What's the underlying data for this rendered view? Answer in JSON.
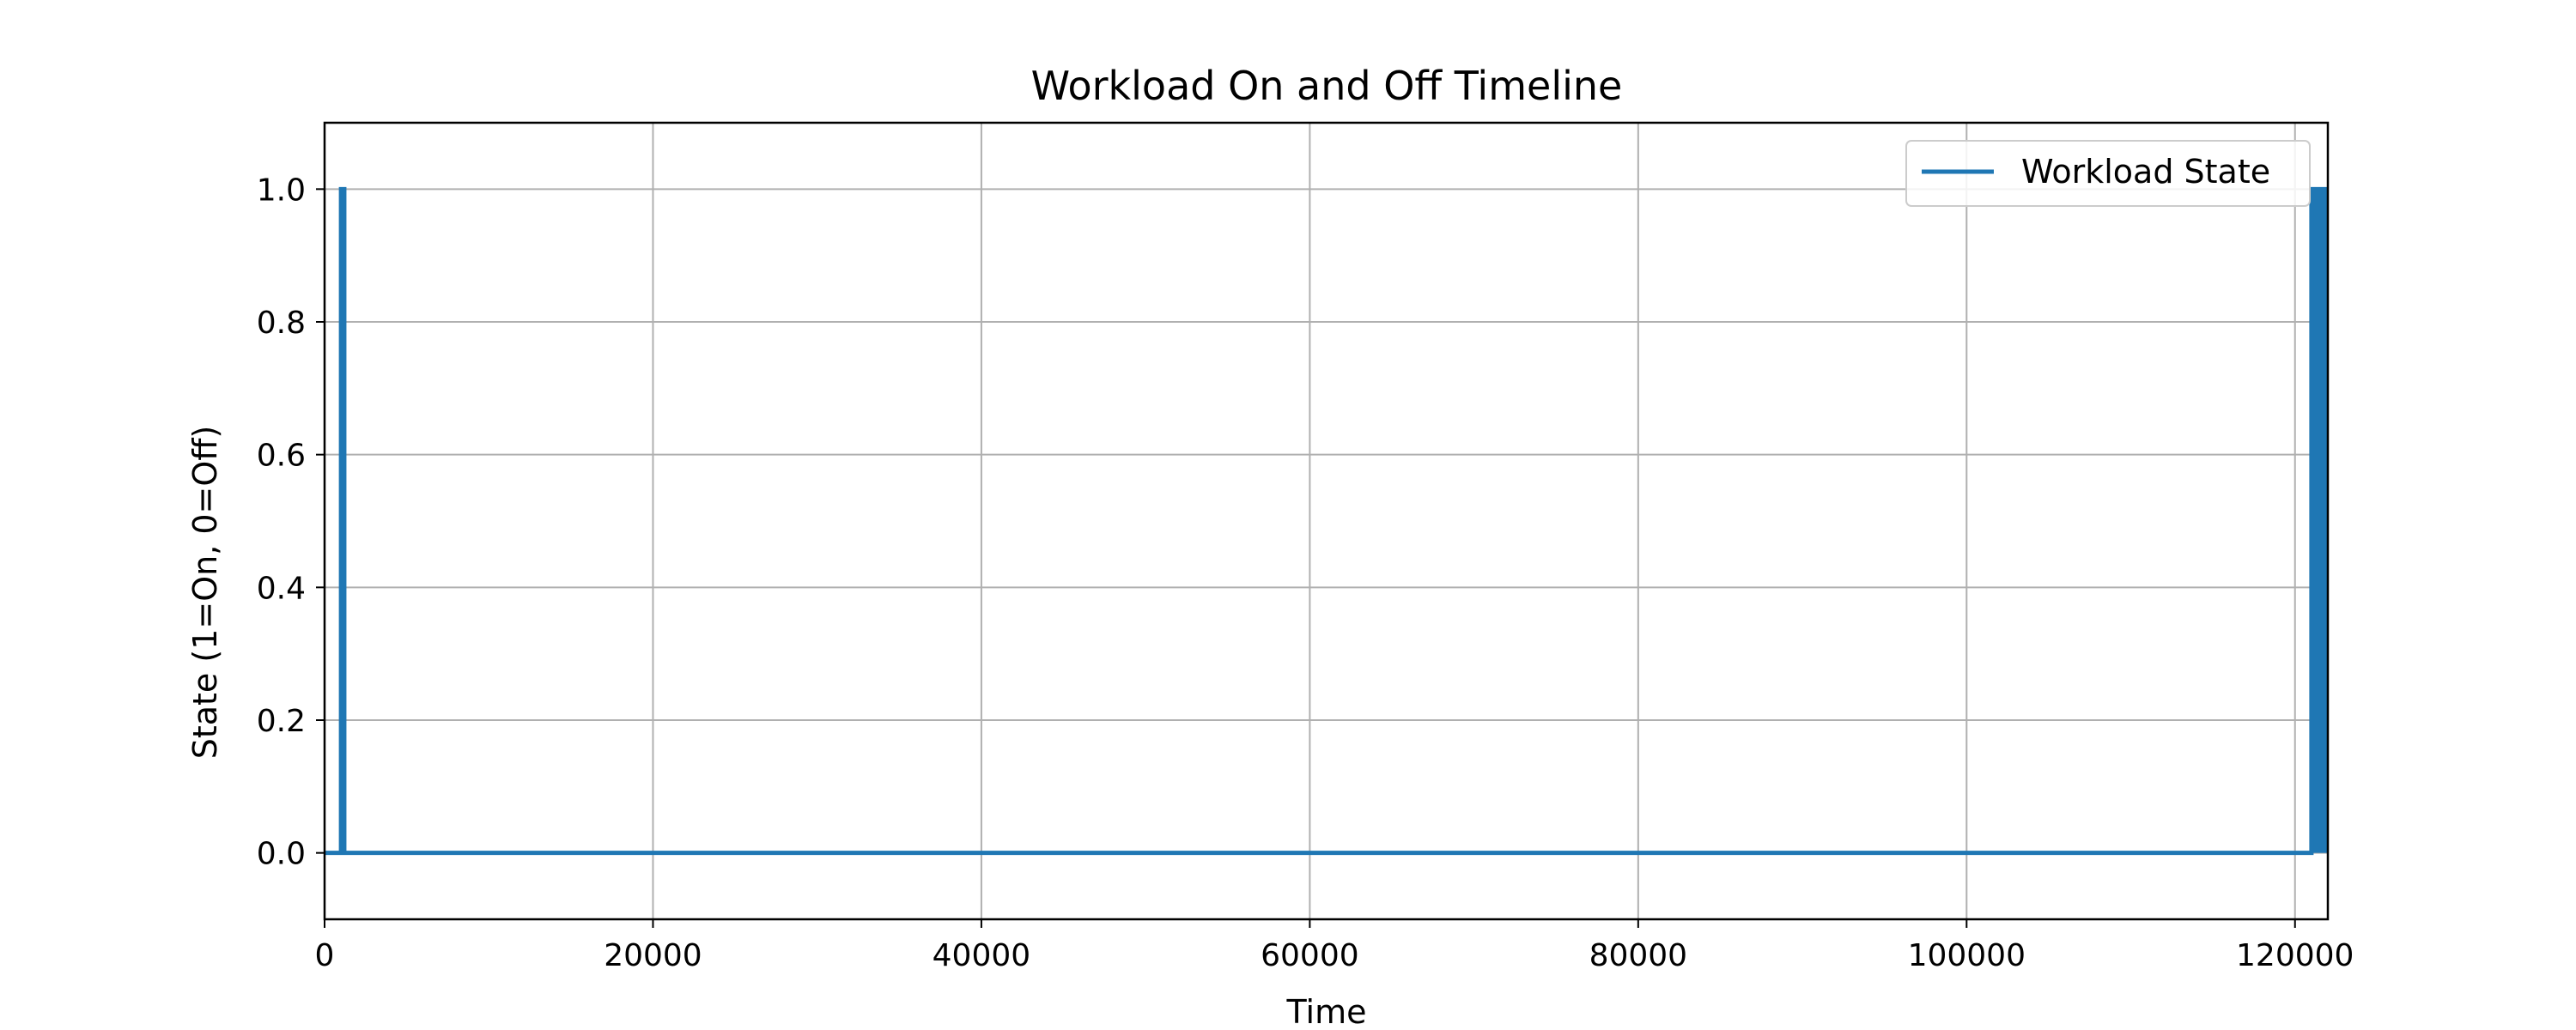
{
  "chart_data": {
    "type": "line",
    "title": "Workload On and Off Timeline",
    "xlabel": "Time",
    "ylabel": "State (1=On, 0=Off)",
    "xlim": [
      0,
      122000
    ],
    "ylim": [
      -0.1,
      1.1
    ],
    "xticks": [
      0,
      20000,
      40000,
      60000,
      80000,
      100000,
      120000
    ],
    "xtick_labels": [
      "0",
      "20000",
      "40000",
      "60000",
      "80000",
      "100000",
      "120000"
    ],
    "yticks": [
      0.0,
      0.2,
      0.4,
      0.6,
      0.8,
      1.0
    ],
    "ytick_labels": [
      "0.0",
      "0.2",
      "0.4",
      "0.6",
      "0.8",
      "1.0"
    ],
    "grid": true,
    "legend": {
      "position": "top-right",
      "entries": [
        "Workload State"
      ]
    },
    "series": [
      {
        "name": "Workload State",
        "color": "#1f77b4",
        "x": [
          0,
          1000,
          1000,
          1200,
          1200,
          121000,
          121000,
          122000
        ],
        "y": [
          0,
          0,
          1,
          1,
          0,
          0,
          1,
          1
        ]
      }
    ]
  }
}
